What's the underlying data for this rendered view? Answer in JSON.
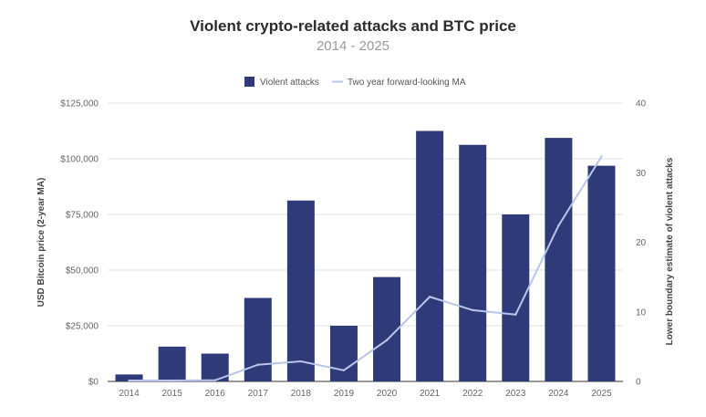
{
  "chart_data": {
    "type": "bar",
    "title": "Violent crypto-related attacks and BTC price",
    "subtitle": "2014 - 2025",
    "categories": [
      "2014",
      "2015",
      "2016",
      "2017",
      "2018",
      "2019",
      "2020",
      "2021",
      "2022",
      "2023",
      "2024",
      "2025"
    ],
    "series": [
      {
        "name": "Violent attacks",
        "type": "bar",
        "axis": "right",
        "color": "#2e3b78",
        "values": [
          1,
          5,
          4,
          12,
          26,
          8,
          15,
          36,
          34,
          24,
          35,
          31
        ]
      },
      {
        "name": "Two year forward-looking MA",
        "type": "line",
        "axis": "left",
        "color": "#b8c6ec",
        "values": [
          400,
          400,
          500,
          7500,
          9000,
          5000,
          18500,
          38000,
          32000,
          30000,
          70000,
          101000
        ]
      }
    ],
    "y_left": {
      "label": "USD Bitcoin price (2-year MA)",
      "min": 0,
      "max": 125000,
      "ticks": [
        "$0",
        "$25,000",
        "$50,000",
        "$75,000",
        "$100,000",
        "$125,000"
      ],
      "tick_values": [
        0,
        25000,
        50000,
        75000,
        100000,
        125000
      ]
    },
    "y_right": {
      "label": "Lower boundary estimate of violent attacks",
      "min": 0,
      "max": 40,
      "ticks": [
        "0",
        "10",
        "20",
        "30",
        "40"
      ],
      "tick_values": [
        0,
        10,
        20,
        30,
        40
      ]
    },
    "grid": true,
    "legend_position": "top-center"
  }
}
